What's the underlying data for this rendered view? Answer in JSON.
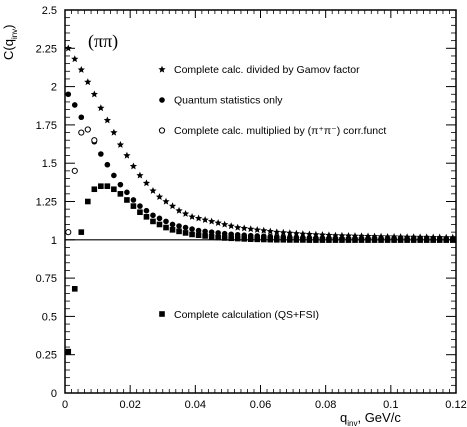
{
  "chart_data": {
    "type": "scatter",
    "panel_label": "(ππ)",
    "xlabel": "q_inv, GeV/c",
    "xlabel_main": "q",
    "xlabel_sub": "inv",
    "xlabel_unit": ", GeV/c",
    "ylabel_main": "C(q",
    "ylabel_sub": "inv",
    "ylabel_close": ")",
    "xlim": [
      0,
      0.12
    ],
    "ylim": [
      0,
      2.5
    ],
    "x_ticks": [
      0,
      0.02,
      0.04,
      0.06,
      0.08,
      0.1,
      0.12
    ],
    "x_tick_labels": [
      "0",
      "0.02",
      "0.04",
      "0.06",
      "0.08",
      "0.1",
      "0.12"
    ],
    "y_ticks": [
      0,
      0.25,
      0.5,
      0.75,
      1,
      1.25,
      1.5,
      1.75,
      2,
      2.25,
      2.5
    ],
    "y_tick_labels": [
      "0",
      "0.25",
      "0.5",
      "0.75",
      "1",
      "1.25",
      "1.5",
      "1.75",
      "2",
      "2.25",
      "2.5"
    ],
    "reference_line_y": 1,
    "legend": [
      {
        "marker": "star",
        "label": "Complete calc. divided by Gamov factor"
      },
      {
        "marker": "filled-circle",
        "label": "Quantum statistics only"
      },
      {
        "marker": "open-circle",
        "label": "Complete calc. multiplied by (π⁺π⁻) corr.funct"
      }
    ],
    "annotation": {
      "marker": "filled-square",
      "label": "Complete calculation (QS+FSI)"
    },
    "series": [
      {
        "marker": "star",
        "x": [
          0.001,
          0.003,
          0.005,
          0.007,
          0.009,
          0.011,
          0.013,
          0.015,
          0.017,
          0.019,
          0.021,
          0.023,
          0.025,
          0.027,
          0.029,
          0.031,
          0.033,
          0.035,
          0.037,
          0.039,
          0.041,
          0.043,
          0.045,
          0.047,
          0.049,
          0.051,
          0.053,
          0.055,
          0.057,
          0.059,
          0.061,
          0.063,
          0.065,
          0.067,
          0.069,
          0.071,
          0.073,
          0.075,
          0.077,
          0.079,
          0.081,
          0.083,
          0.085,
          0.087,
          0.089,
          0.091,
          0.093,
          0.095,
          0.097,
          0.099,
          0.101,
          0.103,
          0.105,
          0.107,
          0.109,
          0.111,
          0.113,
          0.115,
          0.117,
          0.119
        ],
        "y": [
          2.25,
          2.18,
          2.11,
          2.03,
          1.95,
          1.86,
          1.78,
          1.7,
          1.62,
          1.55,
          1.48,
          1.42,
          1.37,
          1.32,
          1.28,
          1.25,
          1.22,
          1.19,
          1.17,
          1.15,
          1.14,
          1.13,
          1.12,
          1.11,
          1.1,
          1.09,
          1.08,
          1.075,
          1.07,
          1.065,
          1.06,
          1.055,
          1.05,
          1.047,
          1.044,
          1.041,
          1.038,
          1.036,
          1.034,
          1.032,
          1.03,
          1.028,
          1.027,
          1.026,
          1.025,
          1.024,
          1.023,
          1.022,
          1.021,
          1.02,
          1.02,
          1.019,
          1.018,
          1.018,
          1.017,
          1.017,
          1.016,
          1.016,
          1.015,
          1.015
        ]
      },
      {
        "marker": "filled-circle",
        "x": [
          0.001,
          0.003,
          0.005,
          0.007,
          0.009,
          0.011,
          0.013,
          0.015,
          0.017,
          0.019,
          0.021,
          0.023,
          0.025,
          0.027,
          0.029,
          0.031,
          0.033,
          0.035,
          0.037,
          0.039,
          0.041,
          0.043,
          0.045,
          0.047,
          0.049,
          0.051,
          0.053,
          0.055,
          0.057,
          0.059,
          0.061,
          0.063,
          0.065,
          0.067,
          0.069,
          0.071,
          0.073,
          0.075,
          0.077,
          0.079,
          0.081,
          0.083,
          0.085,
          0.087,
          0.089,
          0.091,
          0.093,
          0.095,
          0.097,
          0.099,
          0.101,
          0.103,
          0.105,
          0.107,
          0.109,
          0.111,
          0.113,
          0.115,
          0.117,
          0.119
        ],
        "y": [
          1.95,
          1.88,
          1.8,
          1.72,
          1.64,
          1.56,
          1.49,
          1.42,
          1.36,
          1.31,
          1.26,
          1.22,
          1.19,
          1.16,
          1.14,
          1.12,
          1.1,
          1.09,
          1.08,
          1.07,
          1.06,
          1.055,
          1.05,
          1.045,
          1.04,
          1.036,
          1.033,
          1.03,
          1.027,
          1.025,
          1.023,
          1.021,
          1.019,
          1.018,
          1.016,
          1.015,
          1.014,
          1.013,
          1.012,
          1.011,
          1.01,
          1.01,
          1.009,
          1.009,
          1.008,
          1.008,
          1.007,
          1.007,
          1.007,
          1.006,
          1.006,
          1.006,
          1.005,
          1.005,
          1.005,
          1.005,
          1.004,
          1.004,
          1.004,
          1.004
        ]
      },
      {
        "marker": "open-circle",
        "x": [
          0.001,
          0.003,
          0.005,
          0.007,
          0.009
        ],
        "y": [
          1.05,
          1.45,
          1.7,
          1.72,
          1.65
        ]
      },
      {
        "marker": "filled-square",
        "x": [
          0.001,
          0.003,
          0.005,
          0.007,
          0.009,
          0.011,
          0.013,
          0.015,
          0.017,
          0.019,
          0.021,
          0.023,
          0.025,
          0.027,
          0.029,
          0.031,
          0.033,
          0.035,
          0.037,
          0.039,
          0.041,
          0.043,
          0.045,
          0.047,
          0.049,
          0.051,
          0.053,
          0.055,
          0.057,
          0.059,
          0.061,
          0.063,
          0.065,
          0.067,
          0.069,
          0.071,
          0.073,
          0.075,
          0.077,
          0.079,
          0.081,
          0.083,
          0.085,
          0.087,
          0.089,
          0.091,
          0.093,
          0.095,
          0.097,
          0.099,
          0.101,
          0.103,
          0.105,
          0.107,
          0.109,
          0.111,
          0.113,
          0.115,
          0.117,
          0.119
        ],
        "y": [
          0.27,
          0.68,
          1.05,
          1.25,
          1.33,
          1.35,
          1.35,
          1.33,
          1.3,
          1.26,
          1.22,
          1.18,
          1.15,
          1.12,
          1.1,
          1.08,
          1.065,
          1.055,
          1.045,
          1.035,
          1.03,
          1.025,
          1.02,
          1.015,
          1.012,
          1.01,
          1.008,
          1.006,
          1.004,
          1.003,
          1.002,
          1.001,
          1.0,
          1.0,
          0.999,
          0.999,
          0.999,
          0.998,
          0.998,
          0.998,
          0.998,
          0.998,
          0.998,
          0.998,
          0.998,
          0.998,
          0.998,
          0.998,
          0.998,
          0.998,
          0.998,
          0.998,
          0.998,
          0.998,
          0.998,
          0.998,
          0.998,
          0.998,
          0.998,
          0.998
        ]
      }
    ]
  }
}
